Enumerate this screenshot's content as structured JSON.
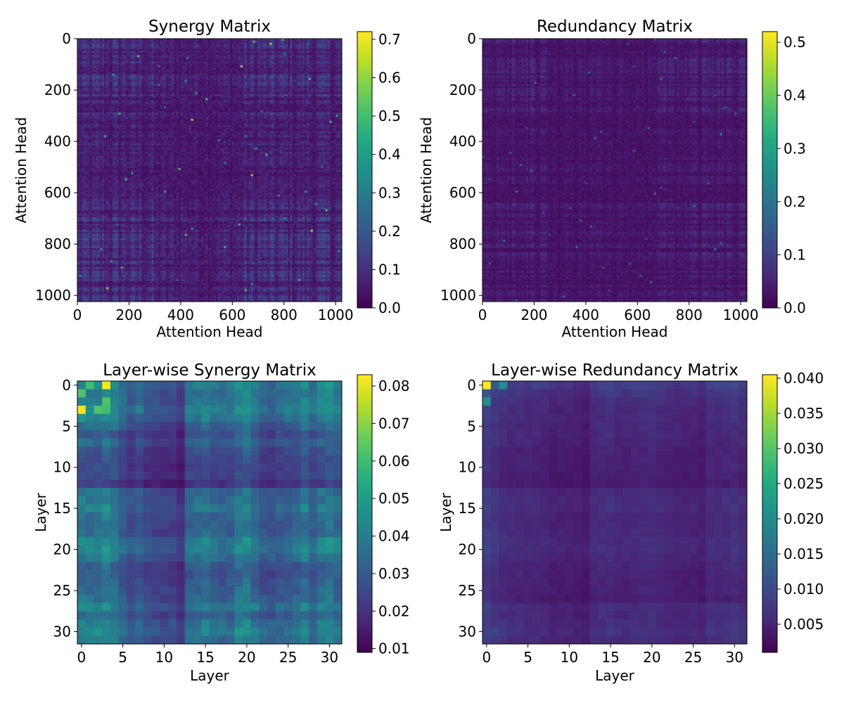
{
  "colormap": "viridis",
  "chart_data": [
    {
      "type": "heatmap",
      "title": "Synergy Matrix",
      "xlabel": "Attention Head",
      "ylabel": "Attention Head",
      "xlim": [
        0,
        1024
      ],
      "ylim": [
        0,
        1024
      ],
      "y_inverted": true,
      "xticks": [
        0,
        200,
        400,
        600,
        800,
        1000
      ],
      "yticks": [
        0,
        200,
        400,
        600,
        800,
        1000
      ],
      "colorbar": {
        "min": 0.0,
        "max": 0.72,
        "ticks": [
          "0.0",
          "0.1",
          "0.2",
          "0.3",
          "0.4",
          "0.5",
          "0.6",
          "0.7"
        ]
      },
      "description_of_values": "dense high-frequency structure; mostly 0.0–0.1 with sparse brighter cells up to ~0.7",
      "approx_mean": 0.05
    },
    {
      "type": "heatmap",
      "title": "Redundancy Matrix",
      "xlabel": "Attention Head",
      "ylabel": "Attention Head",
      "xlim": [
        0,
        1024
      ],
      "ylim": [
        0,
        1024
      ],
      "y_inverted": true,
      "xticks": [
        0,
        200,
        400,
        600,
        800,
        1000
      ],
      "yticks": [
        0,
        200,
        400,
        600,
        800,
        1000
      ],
      "colorbar": {
        "min": 0.0,
        "max": 0.52,
        "ticks": [
          "0.0",
          "0.1",
          "0.2",
          "0.3",
          "0.4",
          "0.5"
        ]
      },
      "approx_mean": 0.02
    },
    {
      "type": "heatmap",
      "title": "Layer-wise Synergy Matrix",
      "xlabel": "Layer",
      "ylabel": "Layer",
      "xlim": [
        0,
        31
      ],
      "ylim": [
        0,
        31
      ],
      "y_inverted": true,
      "xticks": [
        0,
        5,
        10,
        15,
        20,
        25,
        30
      ],
      "yticks": [
        0,
        5,
        10,
        15,
        20,
        25,
        30
      ],
      "colorbar": {
        "min": 0.009,
        "max": 0.083,
        "ticks": [
          "0.01",
          "0.02",
          "0.03",
          "0.04",
          "0.05",
          "0.06",
          "0.07",
          "0.08"
        ]
      },
      "row_profile": [
        0.045,
        0.04,
        0.042,
        0.05,
        0.042,
        0.03,
        0.022,
        0.028,
        0.02,
        0.018,
        0.017,
        0.018,
        0.012,
        0.032,
        0.036,
        0.04,
        0.032,
        0.03,
        0.031,
        0.044,
        0.048,
        0.036,
        0.026,
        0.024,
        0.027,
        0.03,
        0.032,
        0.044,
        0.03,
        0.04,
        0.045,
        0.038
      ],
      "peaks": [
        [
          0,
          3,
          0.083
        ],
        [
          3,
          0,
          0.082
        ],
        [
          1,
          0,
          0.062
        ],
        [
          0,
          1,
          0.06
        ],
        [
          2,
          3,
          0.062
        ],
        [
          3,
          3,
          0.06
        ]
      ]
    },
    {
      "type": "heatmap",
      "title": "Layer-wise Redundancy Matrix",
      "xlabel": "Layer",
      "ylabel": "Layer",
      "xlim": [
        0,
        31
      ],
      "ylim": [
        0,
        31
      ],
      "y_inverted": true,
      "xticks": [
        0,
        5,
        10,
        15,
        20,
        25,
        30
      ],
      "yticks": [
        0,
        5,
        10,
        15,
        20,
        25,
        30
      ],
      "colorbar": {
        "min": 0.001,
        "max": 0.0405,
        "ticks": [
          "0.005",
          "0.010",
          "0.015",
          "0.020",
          "0.025",
          "0.030",
          "0.035",
          "0.040"
        ]
      },
      "row_profile": [
        0.012,
        0.009,
        0.007,
        0.006,
        0.006,
        0.0055,
        0.0055,
        0.005,
        0.004,
        0.004,
        0.004,
        0.0035,
        0.003,
        0.0058,
        0.0065,
        0.0068,
        0.0055,
        0.0055,
        0.0058,
        0.0065,
        0.0068,
        0.0055,
        0.005,
        0.0045,
        0.0042,
        0.0045,
        0.0035,
        0.0065,
        0.006,
        0.0065,
        0.0075,
        0.0065
      ],
      "peaks": [
        [
          0,
          0,
          0.0405
        ],
        [
          0,
          2,
          0.02
        ],
        [
          2,
          0,
          0.021
        ],
        [
          1,
          0,
          0.012
        ]
      ]
    }
  ]
}
